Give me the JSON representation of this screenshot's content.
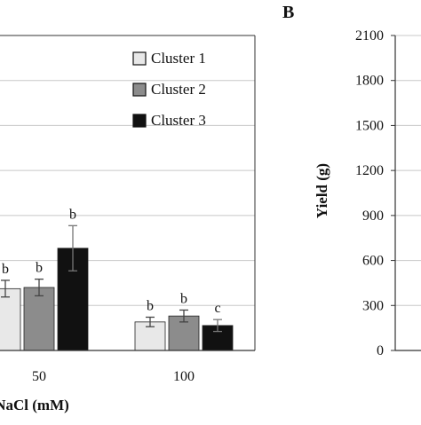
{
  "chart_data": [
    {
      "panel": "",
      "type": "bar",
      "xlabel": "NaCl (mM)",
      "ylabel": "",
      "categories": [
        "",
        "50",
        "100"
      ],
      "series": [
        {
          "name": "Cluster 1",
          "color": "#e8e8e8",
          "values": [
            null,
            0.52,
            0.24
          ],
          "errors": [
            null,
            0.07,
            0.04
          ],
          "labels": [
            "",
            "b",
            "b"
          ]
        },
        {
          "name": "Cluster 2",
          "color": "#8c8c8c",
          "values": [
            null,
            0.53,
            0.29
          ],
          "errors": [
            null,
            0.07,
            0.05
          ],
          "labels": [
            "",
            "b",
            "b"
          ]
        },
        {
          "name": "Cluster 3",
          "color": "#111111",
          "values": [
            null,
            0.86,
            0.21
          ],
          "errors": [
            null,
            0.19,
            0.05
          ],
          "labels": [
            "",
            "b",
            "c"
          ]
        }
      ],
      "ylim": [
        0,
        2.65
      ],
      "legend_position": "top-right",
      "grid": true
    },
    {
      "panel": "B",
      "type": "bar",
      "xlabel": "",
      "ylabel": "Yield (g)",
      "categories": [],
      "series": [],
      "yticks": [
        "0",
        "300",
        "600",
        "900",
        "1200",
        "1500",
        "1800",
        "2100"
      ],
      "ylim": [
        0,
        2100
      ],
      "grid": true
    }
  ]
}
